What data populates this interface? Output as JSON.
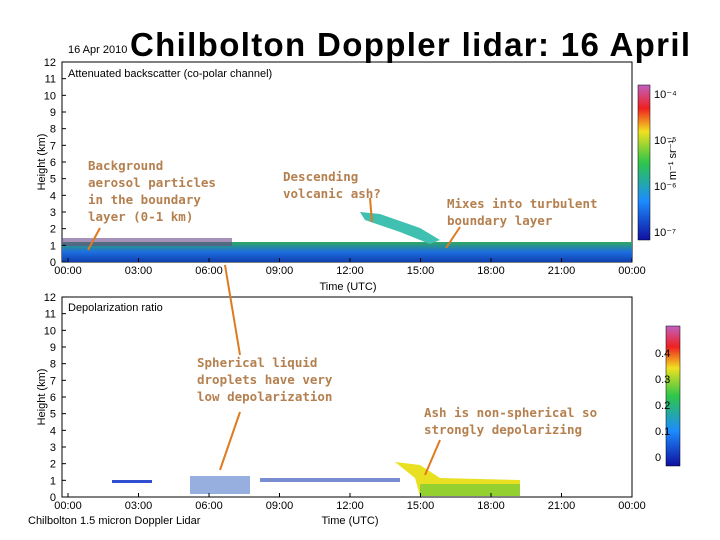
{
  "title": "Chilbolton Doppler lidar: 16 April",
  "date": "16 Apr 2010",
  "top_panel": {
    "title": "Attenuated backscatter (co-polar channel)",
    "ylabel": "Height (km)",
    "xlabel": "Time (UTC)",
    "yticks": [
      "0",
      "1",
      "2",
      "3",
      "4",
      "5",
      "6",
      "7",
      "8",
      "9",
      "10",
      "11",
      "12"
    ],
    "xticks": [
      "00:00",
      "03:00",
      "06:00",
      "09:00",
      "12:00",
      "15:00",
      "18:00",
      "21:00",
      "00:00"
    ],
    "colorbar": {
      "units": "m⁻¹ sr⁻¹",
      "labels": [
        "10⁻⁴",
        "10⁻⁵",
        "10⁻⁶",
        "10⁻⁷"
      ]
    }
  },
  "bottom_panel": {
    "title": "Depolarization ratio",
    "ylabel": "Height (km)",
    "xlabel": "Time (UTC)",
    "yticks": [
      "0",
      "1",
      "2",
      "3",
      "4",
      "5",
      "6",
      "7",
      "8",
      "9",
      "10",
      "11",
      "12"
    ],
    "xticks": [
      "00:00",
      "03:00",
      "06:00",
      "09:00",
      "12:00",
      "15:00",
      "18:00",
      "21:00",
      "00:00"
    ],
    "colorbar": {
      "labels": [
        "0.4",
        "0.3",
        "0.2",
        "0.1",
        "0"
      ]
    }
  },
  "footer": "Chilbolton 1.5 micron Doppler Lidar",
  "annotations": [
    {
      "lines": [
        "Background",
        "aerosol particles",
        "in the boundary",
        "layer (0-1 km)"
      ]
    },
    {
      "lines": [
        "Descending",
        "volcanic ash?"
      ]
    },
    {
      "lines": [
        "Mixes into turbulent",
        "boundary layer"
      ]
    },
    {
      "lines": [
        "Spherical liquid",
        "droplets have very",
        "low depolarization"
      ]
    },
    {
      "lines": [
        "Ash is non-spherical so",
        "strongly depolarizing"
      ]
    }
  ]
}
